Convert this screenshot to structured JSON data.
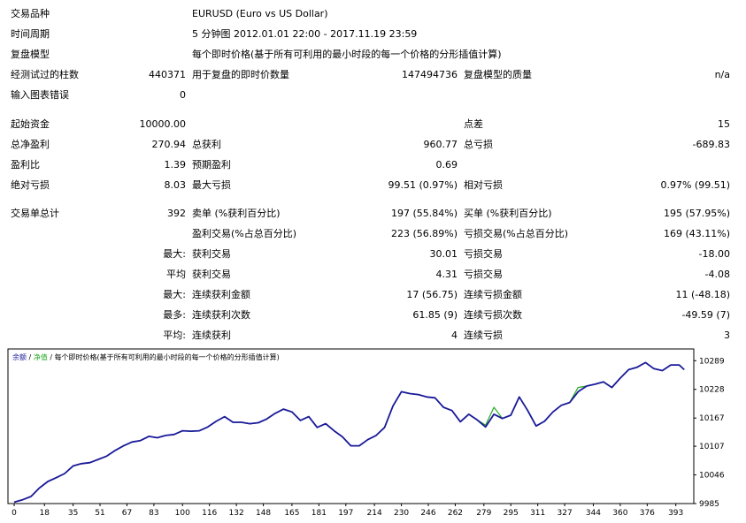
{
  "report": {
    "symbol_label": "交易品种",
    "symbol_value": "EURUSD (Euro vs US Dollar)",
    "period_label": "时间周期",
    "period_value": "5 分钟图 2012.01.01 22:00 - 2017.11.19 23:59",
    "model_label": "复盘模型",
    "model_value": "每个即时价格(基于所有可利用的最小时段的每一个价格的分形插值计算)",
    "bars_label": "经测试过的柱数",
    "bars_value": "440371",
    "ticks_label": "用于复盘的即时价数量",
    "ticks_value": "147494736",
    "quality_label": "复盘模型的质量",
    "quality_value": "n/a",
    "errors_label": "输入图表错误",
    "errors_value": "0",
    "deposit_label": "起始资金",
    "deposit_value": "10000.00",
    "spread_label": "点差",
    "spread_value": "15",
    "net_label": "总净盈利",
    "net_value": "270.94",
    "gross_profit_label": "总获利",
    "gross_profit_value": "960.77",
    "gross_loss_label": "总亏损",
    "gross_loss_value": "-689.83",
    "pf_label": "盈利比",
    "pf_value": "1.39",
    "payoff_label": "预期盈利",
    "payoff_value": "0.69",
    "abs_dd_label": "绝对亏损",
    "abs_dd_value": "8.03",
    "max_dd_label": "最大亏损",
    "max_dd_value": "99.51 (0.97%)",
    "rel_dd_label": "相对亏损",
    "rel_dd_value": "0.97% (99.51)",
    "total_trades_label": "交易单总计",
    "total_trades_value": "392",
    "short_label": "卖单 (%获利百分比)",
    "short_value": "197 (55.84%)",
    "long_label": "买单 (%获利百分比)",
    "long_value": "195 (57.95%)",
    "profit_trades_label": "盈利交易(%占总百分比)",
    "profit_trades_value": "223 (56.89%)",
    "loss_trades_label": "亏损交易(%占总百分比)",
    "loss_trades_value": "169 (43.11%)",
    "largest_prefix": "最大:",
    "largest_profit_label": "获利交易",
    "largest_profit_value": "30.01",
    "largest_loss_label": "亏损交易",
    "largest_loss_value": "-18.00",
    "average_prefix": "平均",
    "average_profit_label": "获利交易",
    "average_profit_value": "4.31",
    "average_loss_label": "亏损交易",
    "average_loss_value": "-4.08",
    "max_prefix": "最大:",
    "max_cons_wins_money_label": "连续获利金额",
    "max_cons_wins_money_value": "17 (56.75)",
    "max_cons_losses_money_label": "连续亏损金额",
    "max_cons_losses_money_value": "11 (-48.18)",
    "most_prefix": "最多:",
    "max_cons_profit_count_label": "连续获利次数",
    "max_cons_profit_count_value": "61.85 (9)",
    "max_cons_loss_count_label": "连续亏损次数",
    "max_cons_loss_count_value": "-49.59 (7)",
    "avg_prefix": "平均:",
    "avg_cons_wins_label": "连续获利",
    "avg_cons_wins_value": "4",
    "avg_cons_losses_label": "连续亏损",
    "avg_cons_losses_value": "3"
  },
  "chart_data": {
    "type": "line",
    "legend_balance": "余额",
    "legend_sep": " / ",
    "legend_equity": "净值",
    "legend_rest": " / 每个即时价格(基于所有可利用的最小时段的每一个价格的分形插值计算)",
    "colors": {
      "balance": "#1a1a99",
      "equity": "#22aa22",
      "legend_balance": "#1a1a99",
      "legend_equity": "#22aa22"
    },
    "x_ticks": [
      0,
      18,
      35,
      51,
      67,
      83,
      100,
      116,
      132,
      148,
      165,
      181,
      197,
      214,
      230,
      246,
      262,
      279,
      295,
      311,
      327,
      344,
      360,
      376,
      393
    ],
    "y_ticks": [
      9985,
      10046,
      10107,
      10167,
      10228,
      10289
    ],
    "xlim": [
      0,
      400
    ],
    "ylim": [
      9985,
      10314
    ],
    "series": [
      {
        "key": "balance",
        "x": [
          0,
          5,
          10,
          15,
          20,
          25,
          30,
          35,
          40,
          45,
          50,
          55,
          60,
          65,
          70,
          75,
          80,
          85,
          90,
          95,
          100,
          105,
          110,
          115,
          120,
          125,
          130,
          135,
          140,
          145,
          150,
          155,
          160,
          165,
          170,
          175,
          180,
          185,
          190,
          195,
          200,
          205,
          210,
          215,
          220,
          225,
          230,
          235,
          240,
          245,
          250,
          255,
          260,
          265,
          270,
          275,
          280,
          285,
          290,
          295,
          300,
          305,
          310,
          315,
          320,
          325,
          330,
          335,
          340,
          345,
          350,
          355,
          360,
          365,
          370,
          375,
          380,
          385,
          390,
          395,
          398
        ],
        "y": [
          9988,
          9993,
          10000,
          10018,
          10032,
          10040,
          10049,
          10065,
          10070,
          10072,
          10079,
          10086,
          10098,
          10108,
          10116,
          10119,
          10128,
          10125,
          10130,
          10132,
          10140,
          10139,
          10140,
          10148,
          10160,
          10170,
          10158,
          10158,
          10155,
          10157,
          10165,
          10177,
          10186,
          10180,
          10162,
          10170,
          10147,
          10155,
          10140,
          10127,
          10108,
          10108,
          10121,
          10130,
          10147,
          10193,
          10223,
          10219,
          10217,
          10212,
          10210,
          10190,
          10183,
          10159,
          10175,
          10163,
          10148,
          10175,
          10166,
          10173,
          10212,
          10183,
          10150,
          10160,
          10180,
          10194,
          10200,
          10223,
          10235,
          10239,
          10244,
          10232,
          10252,
          10270,
          10275,
          10285,
          10272,
          10268,
          10280,
          10280,
          10270
        ]
      },
      {
        "key": "equity",
        "x": [
          0,
          5,
          10,
          15,
          20,
          25,
          30,
          35,
          40,
          45,
          50,
          55,
          60,
          65,
          70,
          75,
          80,
          85,
          90,
          95,
          100,
          105,
          110,
          115,
          120,
          125,
          130,
          135,
          140,
          145,
          150,
          155,
          160,
          165,
          170,
          175,
          180,
          185,
          190,
          195,
          200,
          205,
          210,
          215,
          220,
          225,
          230,
          235,
          240,
          245,
          250,
          255,
          260,
          265,
          270,
          275,
          280,
          285,
          290,
          295,
          300,
          305,
          310,
          315,
          320,
          325,
          330,
          335,
          340,
          345,
          350,
          355,
          360,
          365,
          370,
          375,
          380,
          385,
          390,
          395,
          398
        ],
        "y": [
          9988,
          9993,
          10000,
          10018,
          10032,
          10040,
          10049,
          10065,
          10070,
          10072,
          10079,
          10086,
          10098,
          10108,
          10116,
          10119,
          10128,
          10125,
          10130,
          10132,
          10140,
          10139,
          10140,
          10148,
          10160,
          10170,
          10158,
          10158,
          10155,
          10157,
          10165,
          10177,
          10186,
          10180,
          10162,
          10170,
          10147,
          10155,
          10140,
          10127,
          10108,
          10108,
          10121,
          10130,
          10147,
          10193,
          10223,
          10219,
          10217,
          10212,
          10210,
          10190,
          10183,
          10159,
          10175,
          10163,
          10152,
          10190,
          10166,
          10173,
          10212,
          10183,
          10150,
          10160,
          10180,
          10194,
          10200,
          10232,
          10235,
          10239,
          10244,
          10232,
          10252,
          10270,
          10275,
          10285,
          10272,
          10268,
          10280,
          10280,
          10270
        ]
      }
    ]
  }
}
